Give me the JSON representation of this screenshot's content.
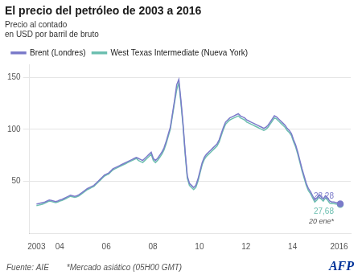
{
  "chart_data": {
    "type": "line",
    "title": "El precio del petróleo de 2003 a 2016",
    "subtitle": [
      "Precio al contado",
      "en USD por barril de bruto"
    ],
    "x": [
      2003,
      2003.0913,
      2003.1825,
      2003.2738,
      2003.365,
      2003.4563,
      2003.5476,
      2003.6388,
      2003.7301,
      2003.8213,
      2003.9126,
      2004.0038,
      2004.0951,
      2004.1864,
      2004.2776,
      2004.3689,
      2004.4601,
      2004.5514,
      2004.6427,
      2004.7339,
      2004.8252,
      2004.9164,
      2005.0077,
      2005.099,
      2005.1902,
      2005.2815,
      2005.3727,
      2005.464,
      2005.5552,
      2005.6465,
      2005.7378,
      2005.829,
      2005.9203,
      2006.0115,
      2006.1028,
      2006.1941,
      2006.2853,
      2006.3766,
      2006.4678,
      2006.5591,
      2006.6503,
      2006.7416,
      2006.8329,
      2006.9241,
      2007.0154,
      2007.1066,
      2007.1979,
      2007.2892,
      2007.3804,
      2007.4717,
      2007.5629,
      2007.6542,
      2007.7455,
      2007.8367,
      2007.928,
      2008.0192,
      2008.1105,
      2008.2017,
      2008.293,
      2008.3843,
      2008.4755,
      2008.5668,
      2008.658,
      2008.7493,
      2008.8406,
      2008.9318,
      2009.0231,
      2009.1143,
      2009.2056,
      2009.2969,
      2009.3881,
      2009.4794,
      2009.5706,
      2009.6619,
      2009.7531,
      2009.8444,
      2009.9357,
      2010.0269,
      2010.1182,
      2010.2094,
      2010.3007,
      2010.392,
      2010.4832,
      2010.5745,
      2010.6657,
      2010.757,
      2010.8483,
      2010.9395,
      2011.0308,
      2011.122,
      2011.2133,
      2011.3045,
      2011.3958,
      2011.4871,
      2011.5783,
      2011.6696,
      2011.7608,
      2011.8521,
      2011.9434,
      2012.0346,
      2012.1259,
      2012.2171,
      2012.3084,
      2012.3997,
      2012.4909,
      2012.5822,
      2012.6734,
      2012.7647,
      2012.8559,
      2012.9472,
      2013.0385,
      2013.1297,
      2013.221,
      2013.3122,
      2013.4035,
      2013.4948,
      2013.586,
      2013.6773,
      2013.7685,
      2013.8598,
      2013.951,
      2014.0423,
      2014.1336,
      2014.2248,
      2014.3161,
      2014.4073,
      2014.4986,
      2014.5899,
      2014.6811,
      2014.7724,
      2014.8636,
      2014.9549,
      2015.0462,
      2015.1374,
      2015.2287,
      2015.3199,
      2015.4112,
      2015.5024,
      2015.5937,
      2015.685,
      2015.7762,
      2015.8675,
      2015.9587,
      2016.05
    ],
    "series": [
      {
        "name": "Brent (Londres)",
        "color": "#7b7bca",
        "values": [
          28.0,
          28.5,
          29.0,
          29.5,
          30.0,
          31.0,
          32.0,
          31.5,
          31.0,
          30.5,
          31.0,
          32.0,
          32.5,
          33.5,
          34.5,
          35.5,
          36.5,
          36.0,
          35.5,
          36.0,
          37.0,
          38.5,
          40.0,
          41.5,
          43.0,
          44.0,
          45.0,
          46.0,
          48.0,
          50.0,
          52.0,
          54.0,
          56.0,
          57.0,
          58.0,
          60.0,
          62.0,
          63.0,
          64.0,
          65.0,
          66.0,
          67.0,
          68.0,
          69.0,
          70.0,
          71.0,
          72.0,
          73.0,
          72.0,
          71.0,
          70.0,
          72.0,
          74.0,
          76.0,
          78.0,
          72.0,
          70.0,
          72.0,
          75.0,
          78.0,
          82.0,
          88.0,
          95.0,
          102.0,
          115.0,
          128.0,
          143.0,
          148.0,
          128.0,
          105.0,
          78.0,
          55.0,
          48.0,
          46.0,
          44.0,
          46.0,
          52.0,
          60.0,
          68.0,
          73.0,
          76.0,
          78.0,
          80.0,
          82.0,
          84.0,
          86.0,
          90.0,
          96.0,
          102.0,
          107.0,
          109.0,
          111.0,
          112.0,
          113.0,
          114.0,
          115.0,
          113.0,
          112.0,
          111.0,
          109.0,
          108.0,
          107.0,
          106.0,
          105.0,
          104.0,
          103.0,
          102.0,
          101.0,
          102.0,
          104.0,
          107.0,
          110.0,
          113.0,
          112.0,
          110.0,
          108.0,
          106.0,
          104.0,
          101.0,
          99.0,
          96.0,
          90.0,
          85.0,
          78.0,
          70.0,
          62.0,
          55.0,
          48.0,
          43.0,
          40.0,
          36.0,
          32.0,
          34.0,
          37.0,
          35.0,
          33.0,
          36.0,
          34.0,
          31.0,
          30.0,
          30.0,
          29.5,
          29.0,
          28.28
        ]
      },
      {
        "name": "West Texas Intermediate (Nueva York)",
        "color": "#6dbfb0",
        "values": [
          26.5,
          27.0,
          27.5,
          28.0,
          29.0,
          30.0,
          31.0,
          30.5,
          30.0,
          29.5,
          30.0,
          31.0,
          31.5,
          32.5,
          33.5,
          34.5,
          35.5,
          35.0,
          34.5,
          35.0,
          36.0,
          37.5,
          39.0,
          40.5,
          42.0,
          43.0,
          44.0,
          45.0,
          47.0,
          49.0,
          51.0,
          53.0,
          55.0,
          56.0,
          57.0,
          59.0,
          61.0,
          62.0,
          63.0,
          64.0,
          65.0,
          66.0,
          67.0,
          68.0,
          69.0,
          70.0,
          71.0,
          72.0,
          70.0,
          69.0,
          68.0,
          70.0,
          72.0,
          74.0,
          76.0,
          70.0,
          68.0,
          70.0,
          73.0,
          76.0,
          80.0,
          86.0,
          93.0,
          100.0,
          113.0,
          126.0,
          138.0,
          145.0,
          125.0,
          103.0,
          76.0,
          53.0,
          46.0,
          44.0,
          42.0,
          44.0,
          50.0,
          58.0,
          66.0,
          71.0,
          74.0,
          76.0,
          78.0,
          80.0,
          82.0,
          84.0,
          88.0,
          94.0,
          100.0,
          105.0,
          107.0,
          109.0,
          110.0,
          111.0,
          112.0,
          113.0,
          111.0,
          110.0,
          109.0,
          107.0,
          106.0,
          105.0,
          104.0,
          103.0,
          102.0,
          101.0,
          100.0,
          99.0,
          100.0,
          102.0,
          105.0,
          108.0,
          111.0,
          110.0,
          108.0,
          106.0,
          104.0,
          102.0,
          99.0,
          97.0,
          94.0,
          88.0,
          83.0,
          76.0,
          68.0,
          60.0,
          53.0,
          46.0,
          41.0,
          38.0,
          34.0,
          30.0,
          32.0,
          35.0,
          33.0,
          31.0,
          34.0,
          32.0,
          29.0,
          28.5,
          28.5,
          28.0,
          27.8,
          27.68
        ]
      }
    ],
    "marker": "end",
    "xlim": [
      2002.7,
      2016.5
    ],
    "xticks": [
      2003,
      {
        "value": 2004,
        "label": "04"
      },
      {
        "value": 2006,
        "label": "06"
      },
      {
        "value": 2008,
        "label": "08"
      },
      {
        "value": 2010,
        "label": "10"
      },
      {
        "value": 2012,
        "label": "12"
      },
      {
        "value": 2014,
        "label": "14"
      },
      2016
    ],
    "ylim": [
      0,
      162
    ],
    "yticks": [
      50,
      100,
      150
    ],
    "grid": "y",
    "legend": "top",
    "annotations": [
      {
        "text": "28,28",
        "x": 2016.05,
        "y": 28.28,
        "color": "#7b7bca"
      },
      {
        "text": "27,68",
        "x": 2016.05,
        "y": 27.68,
        "color": "#6dbfb0"
      },
      {
        "text": "20 ene*",
        "x": 2016.05
      },
      {
        "text": "Fuente: AIE"
      },
      {
        "text": "*Mercado asiático (05H00 GMT)"
      },
      {
        "text": "AFP",
        "color": "#003399"
      }
    ]
  }
}
